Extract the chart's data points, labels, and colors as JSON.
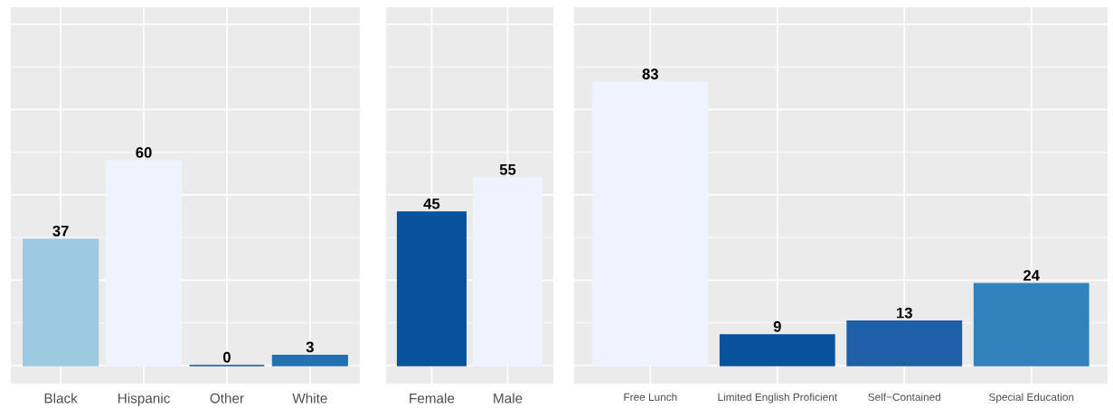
{
  "chart_data": [
    {
      "type": "bar",
      "categories": [
        "Black",
        "Hispanic",
        "Other",
        "White"
      ],
      "values": [
        37,
        60,
        0,
        3
      ],
      "colors": [
        "#9ecae1",
        "#eff3ff",
        "#08519c",
        "#2171b5"
      ],
      "ylim": [
        -5.3,
        105
      ],
      "yticks": [
        {
          "value": 0,
          "label": null
        },
        {
          "value": 25,
          "label": null
        },
        {
          "value": 50,
          "label": null
        },
        {
          "value": 75,
          "label": null
        },
        {
          "value": 100,
          "label": null
        }
      ],
      "tick_labels": "x",
      "data_labels": true,
      "grid": true,
      "legend": false
    },
    {
      "type": "bar",
      "categories": [
        "Female",
        "Male"
      ],
      "values": [
        45,
        55
      ],
      "colors": [
        "#08519c",
        "#eff3ff"
      ],
      "ylim": [
        -5.3,
        105
      ],
      "yticks": [
        {
          "value": 0,
          "label": null
        },
        {
          "value": 25,
          "label": null
        },
        {
          "value": 50,
          "label": null
        },
        {
          "value": 75,
          "label": null
        },
        {
          "value": 100,
          "label": null
        }
      ],
      "tick_labels": "x",
      "data_labels": true,
      "grid": true,
      "legend": false
    },
    {
      "type": "bar",
      "categories": [
        "Free Lunch",
        "Limited English Proficient",
        "Self−Contained",
        "Special Education"
      ],
      "values": [
        83,
        9,
        13,
        24
      ],
      "colors": [
        "#eff3ff",
        "#08519c",
        "#1f5fa8",
        "#3182bd"
      ],
      "ylim": [
        -5.3,
        105
      ],
      "yticks": [
        {
          "value": 0,
          "label": null
        },
        {
          "value": 25,
          "label": null
        },
        {
          "value": 50,
          "label": null
        },
        {
          "value": 75,
          "label": null
        },
        {
          "value": 100,
          "label": null
        }
      ],
      "tick_labels": "x",
      "data_labels": true,
      "grid": true,
      "legend": false
    }
  ]
}
